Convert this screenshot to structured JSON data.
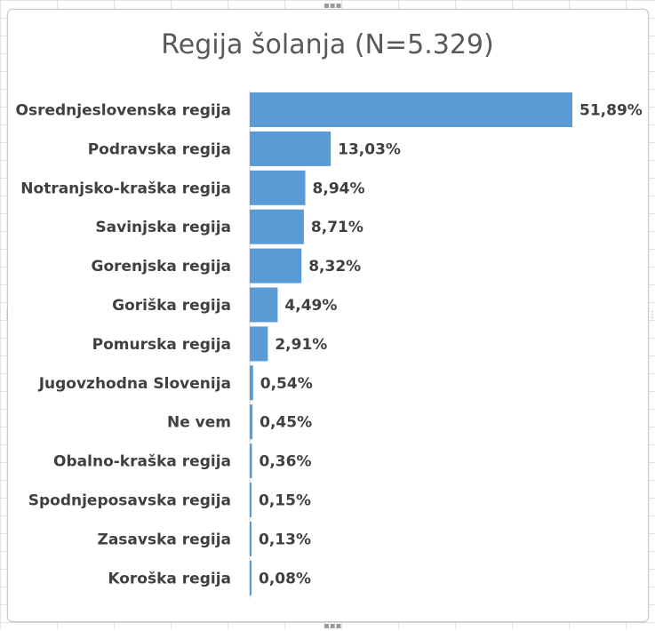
{
  "chart_data": {
    "type": "bar",
    "orientation": "horizontal",
    "title": "Regija šolanja (N=5.329)",
    "categories": [
      "Osrednjeslovenska regija",
      "Podravska regija",
      "Notranjsko-kraška regija",
      "Savinjska regija",
      "Gorenjska regija",
      "Goriška regija",
      "Pomurska regija",
      "Jugovzhodna Slovenija",
      "Ne vem",
      "Obalno-kraška regija",
      "Spodnjeposavska regija",
      "Zasavska regija",
      "Koroška regija"
    ],
    "values": [
      51.89,
      13.03,
      8.94,
      8.71,
      8.32,
      4.49,
      2.91,
      0.54,
      0.45,
      0.36,
      0.15,
      0.13,
      0.08
    ],
    "value_labels": [
      "51,89%",
      "13,03%",
      "8,94%",
      "8,71%",
      "8,32%",
      "4,49%",
      "2,91%",
      "0,54%",
      "0,45%",
      "0,36%",
      "0,15%",
      "0,13%",
      "0,08%"
    ],
    "xlabel": "",
    "ylabel": "",
    "xlim": [
      0,
      51.89
    ],
    "grid": false,
    "legend": "none",
    "bar_color": "#5b9bd5"
  }
}
